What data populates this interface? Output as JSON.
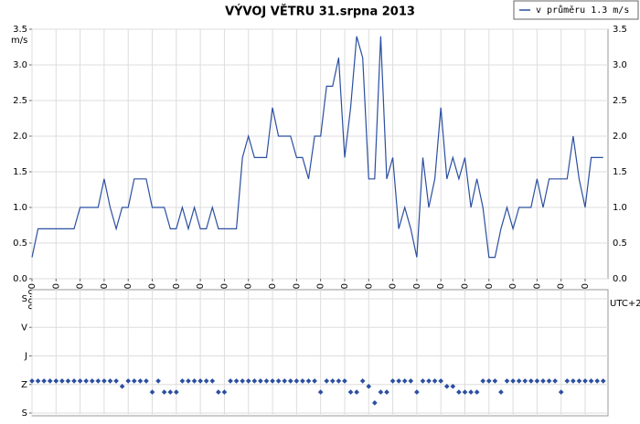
{
  "chart_data": [
    {
      "type": "line",
      "title": "VÝVOJ VĚTRU  31.srpna 2013",
      "y_label": "m/s",
      "x_label": "UTC+2",
      "x": [
        0,
        0.25,
        0.5,
        0.75,
        1,
        1.25,
        1.5,
        1.75,
        2,
        2.25,
        2.5,
        2.75,
        3,
        3.25,
        3.5,
        3.75,
        4,
        4.25,
        4.5,
        4.75,
        5,
        5.25,
        5.5,
        5.75,
        6,
        6.25,
        6.5,
        6.75,
        7,
        7.25,
        7.5,
        7.75,
        8,
        8.25,
        8.5,
        8.75,
        9,
        9.25,
        9.5,
        9.75,
        10,
        10.25,
        10.5,
        10.75,
        11,
        11.25,
        11.5,
        11.75,
        12,
        12.25,
        12.5,
        12.75,
        13,
        13.25,
        13.5,
        13.75,
        14,
        14.25,
        14.5,
        14.75,
        15,
        15.25,
        15.5,
        15.75,
        16,
        16.25,
        16.5,
        16.75,
        17,
        17.25,
        17.5,
        17.75,
        18,
        18.25,
        18.5,
        18.75,
        19,
        19.25,
        19.5,
        19.75,
        20,
        20.25,
        20.5,
        20.75,
        21,
        21.25,
        21.5,
        21.75,
        22,
        22.25,
        22.5,
        22.75,
        23,
        23.25,
        23.5,
        23.75
      ],
      "series": [
        {
          "name": "v průměru 1.3 m/s",
          "color": "#2b4fa0",
          "values": [
            0.3,
            0.7,
            0.7,
            0.7,
            0.7,
            0.7,
            0.7,
            0.7,
            1.0,
            1.0,
            1.0,
            1.0,
            1.4,
            1.0,
            0.7,
            1.0,
            1.0,
            1.4,
            1.4,
            1.4,
            1.0,
            1.0,
            1.0,
            0.7,
            0.7,
            1.0,
            0.7,
            1.0,
            0.7,
            0.7,
            1.0,
            0.7,
            0.7,
            0.7,
            0.7,
            1.7,
            2.0,
            1.7,
            1.7,
            1.7,
            2.4,
            2.0,
            2.0,
            2.0,
            1.7,
            1.7,
            1.4,
            2.0,
            2.0,
            2.7,
            2.7,
            3.1,
            1.7,
            2.4,
            3.4,
            3.1,
            1.4,
            1.4,
            3.4,
            1.4,
            1.7,
            0.7,
            1.0,
            0.7,
            0.3,
            1.7,
            1.0,
            1.4,
            2.4,
            1.4,
            1.7,
            1.4,
            1.7,
            1.0,
            1.4,
            1.0,
            0.3,
            0.3,
            0.7,
            1.0,
            0.7,
            1.0,
            1.0,
            1.0,
            1.4,
            1.0,
            1.4,
            1.4,
            1.4,
            1.4,
            2.0,
            1.4,
            1.0,
            1.7,
            1.7,
            1.7
          ]
        }
      ],
      "xlim": [
        0,
        23.95
      ],
      "xticks": [
        {
          "value": 0,
          "label": "00:00"
        },
        {
          "value": 1,
          "label": "01:00"
        },
        {
          "value": 2,
          "label": "02:00"
        },
        {
          "value": 3,
          "label": "03:00"
        },
        {
          "value": 4,
          "label": "04:00"
        },
        {
          "value": 5,
          "label": "05:00"
        },
        {
          "value": 6,
          "label": "06:00"
        },
        {
          "value": 7,
          "label": "07:00"
        },
        {
          "value": 8,
          "label": "08:00"
        },
        {
          "value": 9,
          "label": "09:00"
        },
        {
          "value": 10,
          "label": "10:00"
        },
        {
          "value": 11,
          "label": "11:00"
        },
        {
          "value": 12,
          "label": "12:00"
        },
        {
          "value": 13,
          "label": "13:00"
        },
        {
          "value": 14,
          "label": "14:00"
        },
        {
          "value": 15,
          "label": "15:00"
        },
        {
          "value": 16,
          "label": "16:00"
        },
        {
          "value": 17,
          "label": "17:00"
        },
        {
          "value": 18,
          "label": "18:00"
        },
        {
          "value": 19,
          "label": "19:00"
        },
        {
          "value": 20,
          "label": "20:00"
        },
        {
          "value": 21,
          "label": "21:00"
        },
        {
          "value": 22,
          "label": "22:00"
        },
        {
          "value": 23,
          "label": "23:00"
        }
      ],
      "ylim": [
        0,
        3.5
      ],
      "yticks": [
        {
          "value": 0,
          "label": "0.0"
        },
        0.5,
        {
          "value": 1,
          "label": "1.0"
        },
        1.5,
        {
          "value": 2,
          "label": "2.0"
        },
        2.5,
        {
          "value": 3,
          "label": "3.0"
        },
        3.5
      ],
      "grid": true,
      "legend": "top-right"
    },
    {
      "type": "scatter",
      "color": "#2b4fa0",
      "x": [
        0,
        0.25,
        0.5,
        0.75,
        1,
        1.25,
        1.5,
        1.75,
        2,
        2.25,
        2.5,
        2.75,
        3,
        3.25,
        3.5,
        3.75,
        4,
        4.25,
        4.5,
        4.75,
        5,
        5.25,
        5.5,
        5.75,
        6,
        6.25,
        6.5,
        6.75,
        7,
        7.25,
        7.5,
        7.75,
        8,
        8.25,
        8.5,
        8.75,
        9,
        9.25,
        9.5,
        9.75,
        10,
        10.25,
        10.5,
        10.75,
        11,
        11.25,
        11.5,
        11.75,
        12,
        12.25,
        12.5,
        12.75,
        13,
        13.25,
        13.5,
        13.75,
        14,
        14.25,
        14.5,
        14.75,
        15,
        15.25,
        15.5,
        15.75,
        16,
        16.25,
        16.5,
        16.75,
        17,
        17.25,
        17.5,
        17.75,
        18,
        18.25,
        18.5,
        18.75,
        19,
        19.25,
        19.5,
        19.75,
        20,
        20.25,
        20.5,
        20.75,
        21,
        21.25,
        21.5,
        21.75,
        22,
        22.25,
        22.5,
        22.75,
        23,
        23.25,
        23.5,
        23.75
      ],
      "values": [
        259,
        259,
        259,
        259,
        259,
        259,
        259,
        259,
        259,
        259,
        259,
        259,
        259,
        259,
        259,
        276,
        259,
        259,
        259,
        259,
        294,
        259,
        294,
        294,
        294,
        259,
        259,
        259,
        259,
        259,
        259,
        294,
        294,
        259,
        259,
        259,
        259,
        259,
        259,
        259,
        259,
        259,
        259,
        259,
        259,
        259,
        259,
        259,
        294,
        259,
        259,
        259,
        259,
        294,
        294,
        259,
        276,
        328,
        294,
        294,
        259,
        259,
        259,
        259,
        294,
        259,
        259,
        259,
        259,
        276,
        276,
        294,
        294,
        294,
        294,
        259,
        259,
        259,
        294,
        259,
        259,
        259,
        259,
        259,
        259,
        259,
        259,
        259,
        294,
        259,
        259,
        259,
        259,
        259,
        259,
        259
      ],
      "xlim": [
        0,
        23.95
      ],
      "ylim": [
        0,
        360
      ],
      "yticks": [
        {
          "value": 0,
          "label": "S"
        },
        {
          "value": 90,
          "label": "V"
        },
        {
          "value": 180,
          "label": "J"
        },
        {
          "value": 270,
          "label": "Z"
        },
        {
          "value": 360,
          "label": "S"
        }
      ],
      "grid": true
    }
  ]
}
